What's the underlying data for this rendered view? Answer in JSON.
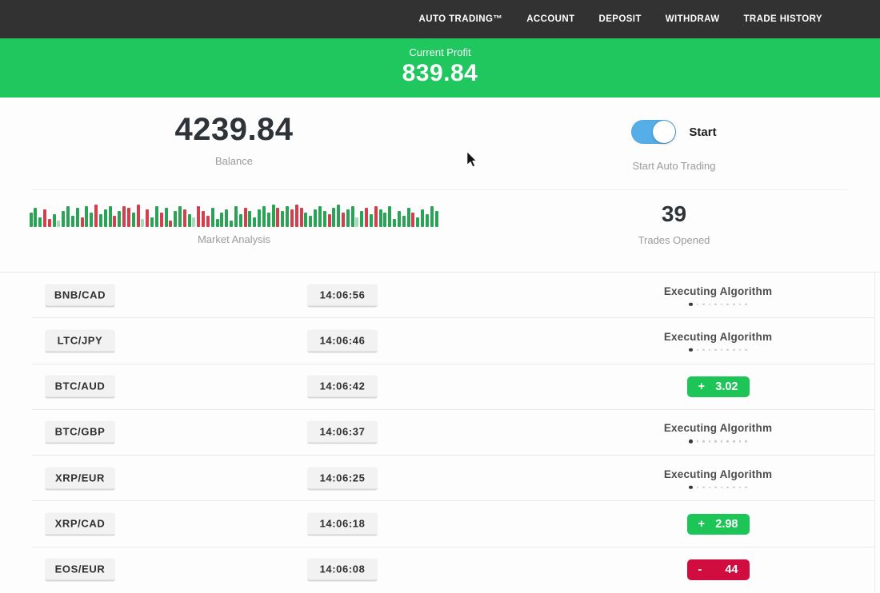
{
  "navbar": {
    "items": [
      {
        "label": "AUTO TRADING™"
      },
      {
        "label": "ACCOUNT"
      },
      {
        "label": "DEPOSIT"
      },
      {
        "label": "WITHDRAW"
      },
      {
        "label": "TRADE HISTORY"
      }
    ]
  },
  "profit_banner": {
    "label": "Current Profit",
    "value": "839.84"
  },
  "balance": {
    "value": "4239.84",
    "label": "Balance"
  },
  "auto_trading": {
    "toggle_label": "Start",
    "toggle_state": "on",
    "caption": "Start Auto Trading"
  },
  "market_analysis": {
    "label": "Market Analysis",
    "bars": [
      "18g",
      "24g",
      "12g",
      "22r",
      "10r",
      "16g",
      "8G",
      "20g",
      "26g",
      "14g",
      "24g",
      "12r",
      "26g",
      "18g",
      "28r",
      "16g",
      "22g",
      "26g",
      "14r",
      "20g",
      "26r",
      "24r",
      "18g",
      "28r",
      "10G",
      "22r",
      "12g",
      "26g",
      "18r",
      "24g",
      "8r",
      "20g",
      "26g",
      "22r",
      "16g",
      "12G",
      "26r",
      "20r",
      "14r",
      "24g",
      "10g",
      "18g",
      "22g",
      "8g",
      "26g",
      "16g",
      "24r",
      "20g",
      "12g",
      "22g",
      "26g",
      "18g",
      "28g",
      "24r",
      "20g",
      "26g",
      "22r",
      "28r",
      "24r",
      "18g",
      "14g",
      "22g",
      "26g",
      "20g",
      "16r",
      "24g",
      "28g",
      "18r",
      "22g",
      "26g",
      "12G",
      "20g",
      "24r",
      "16g",
      "26r",
      "22g",
      "18g",
      "26g",
      "10g",
      "20g",
      "14g",
      "24g",
      "18r",
      "12g",
      "22g",
      "16g",
      "26g",
      "20g"
    ]
  },
  "trades_opened": {
    "value": "39",
    "label": "Trades Opened"
  },
  "status_dots": {
    "total": 10,
    "active": 1
  },
  "trades": [
    {
      "pair": "BNB/CAD",
      "time": "14:06:56",
      "status": {
        "type": "executing",
        "label": "Executing Algorithm"
      }
    },
    {
      "pair": "LTC/JPY",
      "time": "14:06:46",
      "status": {
        "type": "executing",
        "label": "Executing Algorithm"
      }
    },
    {
      "pair": "BTC/AUD",
      "time": "14:06:42",
      "status": {
        "type": "profit",
        "sign": "+",
        "value": "3.02"
      }
    },
    {
      "pair": "BTC/GBP",
      "time": "14:06:37",
      "status": {
        "type": "executing",
        "label": "Executing Algorithm"
      }
    },
    {
      "pair": "XRP/EUR",
      "time": "14:06:25",
      "status": {
        "type": "executing",
        "label": "Executing Algorithm"
      }
    },
    {
      "pair": "XRP/CAD",
      "time": "14:06:18",
      "status": {
        "type": "profit",
        "sign": "+",
        "value": "2.98"
      }
    },
    {
      "pair": "EOS/EUR",
      "time": "14:06:08",
      "status": {
        "type": "loss",
        "sign": "-",
        "value": "44"
      }
    }
  ],
  "colors": {
    "navbar_bg": "#323232",
    "banner_green": "#1fc75e",
    "toggle_blue": "#55aee8",
    "profit_badge": "#1dc556",
    "loss_badge": "#d10d3f"
  }
}
